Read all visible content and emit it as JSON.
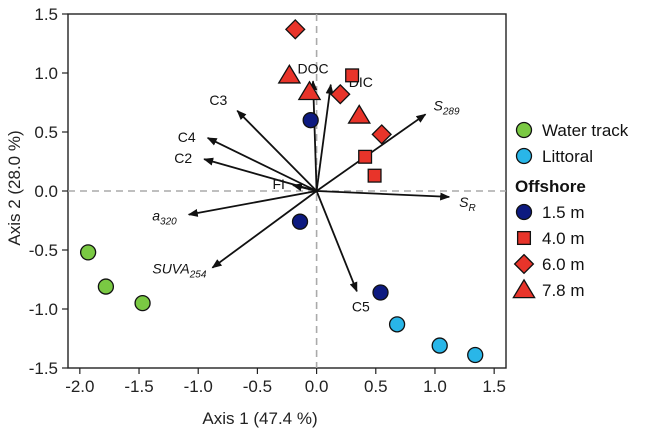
{
  "chart_data": {
    "type": "scatter",
    "subtype": "PCA biplot",
    "xlabel": "Axis 1 (47.4 %)",
    "ylabel": "Axis 2 (28.0 %)",
    "xlim": [
      -2.1,
      1.6
    ],
    "ylim": [
      -1.5,
      1.5
    ],
    "xticks": [
      -2.0,
      -1.5,
      -1.0,
      -0.5,
      0.0,
      0.5,
      1.0,
      1.5
    ],
    "xtick_labels": [
      "-2.0",
      "-1.5",
      "-1.0",
      "-0.5",
      "0.0",
      "0.5",
      "1.0",
      "1.5"
    ],
    "yticks": [
      -1.5,
      -1.0,
      -0.5,
      0.0,
      0.5,
      1.0,
      1.5
    ],
    "ytick_labels": [
      "-1.5",
      "-1.0",
      "-0.5",
      "0.0",
      "0.5",
      "1.0",
      "1.5"
    ],
    "reference_lines": {
      "x": 0,
      "y": 0,
      "style": "dashed"
    },
    "vectors": [
      {
        "name": "DOC",
        "x": -0.03,
        "y": 0.93,
        "label": "DOC"
      },
      {
        "name": "DIC",
        "x": 0.12,
        "y": 0.9,
        "label": "DIC"
      },
      {
        "name": "S289",
        "x": 0.92,
        "y": 0.65,
        "label": "S",
        "sub": "289"
      },
      {
        "name": "SR",
        "x": 1.12,
        "y": -0.05,
        "label": "S",
        "sub": "R"
      },
      {
        "name": "C5",
        "x": 0.34,
        "y": -0.85,
        "label": "C5"
      },
      {
        "name": "SUVA254",
        "x": -0.88,
        "y": -0.65,
        "label": "SUVA",
        "sub": "254"
      },
      {
        "name": "a320",
        "x": -1.08,
        "y": -0.2,
        "label": "a",
        "sub": "320"
      },
      {
        "name": "FI",
        "x": -0.2,
        "y": 0.05,
        "label": "FI"
      },
      {
        "name": "C2",
        "x": -0.95,
        "y": 0.27,
        "label": "C2"
      },
      {
        "name": "C4",
        "x": -0.92,
        "y": 0.45,
        "label": "C4"
      },
      {
        "name": "C3",
        "x": -0.67,
        "y": 0.68,
        "label": "C3"
      }
    ],
    "series": [
      {
        "name": "Water track",
        "group": "",
        "marker": "circle",
        "color": "#7ac943",
        "points": [
          {
            "x": -1.93,
            "y": -0.52
          },
          {
            "x": -1.78,
            "y": -0.81
          },
          {
            "x": -1.47,
            "y": -0.95
          }
        ]
      },
      {
        "name": "Littoral",
        "group": "",
        "marker": "circle",
        "color": "#29b6e8",
        "points": [
          {
            "x": 0.68,
            "y": -1.13
          },
          {
            "x": 1.04,
            "y": -1.31
          },
          {
            "x": 1.34,
            "y": -1.39
          }
        ]
      },
      {
        "name": "1.5 m",
        "group": "Offshore",
        "marker": "circle",
        "color": "#0d1a80",
        "points": [
          {
            "x": -0.05,
            "y": 0.6
          },
          {
            "x": -0.14,
            "y": -0.26
          },
          {
            "x": 0.54,
            "y": -0.86
          }
        ]
      },
      {
        "name": "4.0 m",
        "group": "Offshore",
        "marker": "square",
        "color": "#e8342a",
        "points": [
          {
            "x": 0.3,
            "y": 0.98
          },
          {
            "x": 0.41,
            "y": 0.29
          },
          {
            "x": 0.49,
            "y": 0.13
          }
        ]
      },
      {
        "name": "6.0 m",
        "group": "Offshore",
        "marker": "diamond",
        "color": "#e8342a",
        "points": [
          {
            "x": -0.18,
            "y": 1.37
          },
          {
            "x": 0.2,
            "y": 0.82
          },
          {
            "x": 0.55,
            "y": 0.48
          }
        ]
      },
      {
        "name": "7.8 m",
        "group": "Offshore",
        "marker": "triangle",
        "color": "#e8342a",
        "points": [
          {
            "x": -0.23,
            "y": 0.98
          },
          {
            "x": -0.06,
            "y": 0.84
          },
          {
            "x": 0.36,
            "y": 0.64
          }
        ]
      }
    ],
    "legend": {
      "position": "right",
      "items": [
        {
          "label": "Water track",
          "marker": "circle",
          "color": "#7ac943"
        },
        {
          "label": "Littoral",
          "marker": "circle",
          "color": "#29b6e8"
        }
      ],
      "group_title": "Offshore",
      "group_items": [
        {
          "label": "1.5 m",
          "marker": "circle",
          "color": "#0d1a80"
        },
        {
          "label": "4.0 m",
          "marker": "square",
          "color": "#e8342a"
        },
        {
          "label": "6.0 m",
          "marker": "diamond",
          "color": "#e8342a"
        },
        {
          "label": "7.8 m",
          "marker": "triangle",
          "color": "#e8342a"
        }
      ]
    }
  }
}
